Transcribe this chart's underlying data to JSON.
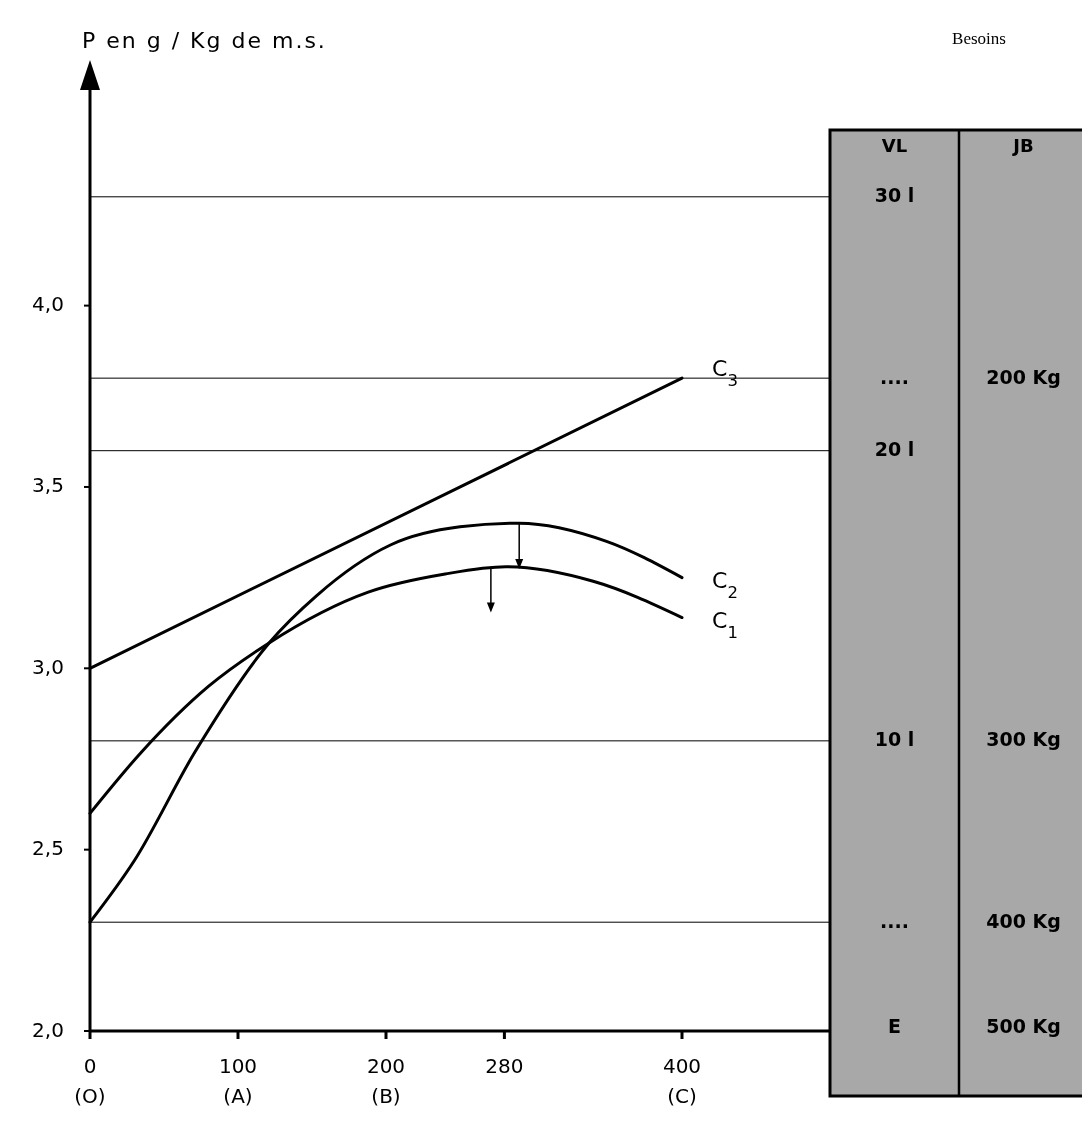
{
  "chart_data": [
    {
      "type": "line",
      "ylabel": "P en g / Kg de m.s.",
      "xlim": [
        0,
        500
      ],
      "ylim": [
        2.0,
        4.6
      ],
      "xticks": [
        {
          "value": 0,
          "label": "0\n(O)"
        },
        {
          "value": 100,
          "label": "100\n(A)"
        },
        {
          "value": 200,
          "label": "200\n(B)"
        },
        280,
        {
          "value": 400,
          "label": "400\n(C)"
        }
      ],
      "yticks": [
        {
          "value": 2.0,
          "label": "2,0"
        },
        {
          "value": 2.5,
          "label": "2,5"
        },
        {
          "value": 3.0,
          "label": "3,0"
        },
        {
          "value": 3.5,
          "label": "3,5"
        },
        {
          "value": 4.0,
          "label": "4,0"
        }
      ],
      "ref_lines": [
        {
          "axis": "y",
          "value": 4.3,
          "color": "#000000"
        },
        {
          "axis": "y",
          "value": 3.8,
          "color": "#000000"
        },
        {
          "axis": "y",
          "value": 3.6,
          "color": "#000000"
        },
        {
          "axis": "y",
          "value": 2.8,
          "color": "#000000"
        },
        {
          "axis": "y",
          "value": 2.3,
          "color": "#000000"
        }
      ],
      "series": [
        {
          "name": "C$_{3}$",
          "color": "#000000",
          "x": [
            0,
            400
          ],
          "values": [
            3.0,
            3.8
          ]
        },
        {
          "name": "C$_{2}$",
          "color": "#000000",
          "x": [
            0,
            30,
            71,
            121,
            153,
            203,
            250,
            290,
            349,
            400
          ],
          "values": [
            2.3,
            2.47,
            2.77,
            3.07,
            3.2,
            3.34,
            3.39,
            3.4,
            3.35,
            3.25
          ]
        },
        {
          "name": "C$_{1}$",
          "color": "#000000",
          "x": [
            0,
            35,
            80,
            121,
            188,
            240,
            281,
            340,
            400
          ],
          "values": [
            2.6,
            2.77,
            2.95,
            3.07,
            3.21,
            3.26,
            3.28,
            3.24,
            3.14
          ]
        }
      ]
    },
    {
      "type": "other",
      "title": "Besoins",
      "categories": [
        "VL",
        "JB"
      ],
      "annotations": [
        {
          "text": "30 l",
          "x": "VL"
        },
        {
          "text": "....",
          "x": "VL"
        },
        {
          "text": "200 Kg",
          "x": "JB"
        },
        {
          "text": "20 l",
          "x": "VL"
        },
        {
          "text": "10 l",
          "x": "VL"
        },
        {
          "text": "300 Kg",
          "x": "JB"
        },
        {
          "text": "....",
          "x": "VL"
        },
        {
          "text": "400 Kg",
          "x": "JB"
        },
        {
          "text": "E",
          "x": "VL"
        },
        {
          "text": "500 Kg",
          "x": "JB"
        }
      ]
    }
  ]
}
